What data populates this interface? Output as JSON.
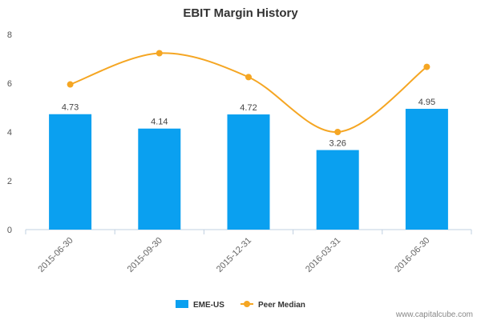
{
  "chart_data": {
    "type": "bar",
    "title": "EBIT Margin History",
    "xlabel": "",
    "ylabel": "",
    "categories": [
      "2015-06-30",
      "2015-09-30",
      "2015-12-31",
      "2016-03-31",
      "2016-06-30"
    ],
    "ylim": [
      0,
      8
    ],
    "yticks": [
      "0",
      "2",
      "4",
      "6",
      "8"
    ],
    "grid": false,
    "legend_position": "bottom-center",
    "series": [
      {
        "name": "EME-US",
        "type": "bar",
        "color": "#0aa0f0",
        "values": [
          4.73,
          4.14,
          4.72,
          3.26,
          4.95
        ],
        "labels": [
          "4.73",
          "4.14",
          "4.72",
          "3.26",
          "4.95"
        ]
      },
      {
        "name": "Peer Median",
        "type": "line",
        "color": "#f5a623",
        "smooth": true,
        "values": [
          5.95,
          7.23,
          6.25,
          4.0,
          6.67
        ]
      }
    ]
  },
  "watermark": "www.capitalcube.com"
}
